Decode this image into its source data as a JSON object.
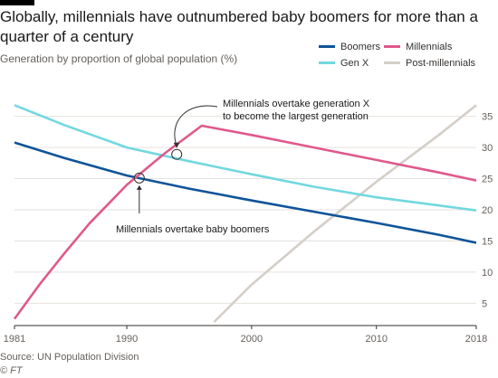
{
  "title": "Globally, millennials have outnumbered baby boomers for more than a quarter of a century",
  "subtitle": "Generation by proportion of global population (%)",
  "source": "Source: UN Population Division",
  "credit": "© FT",
  "colors": {
    "boomers": "#0f5499",
    "millennials": "#e0598b",
    "genx": "#72d8df",
    "post_millennials": "#d4cec8"
  },
  "legend": [
    {
      "name": "Boomers",
      "color": "#0f5499"
    },
    {
      "name": "Millennials",
      "color": "#e0598b"
    },
    {
      "name": "Gen X",
      "color": "#72d8df"
    },
    {
      "name": "Post-millennials",
      "color": "#d4cec8"
    }
  ],
  "annotations": {
    "genx_overtake": "Millennials overtake generation X\nto become the largest generation",
    "boomer_overtake": "Millennials overtake baby boomers"
  },
  "chart_data": {
    "type": "line",
    "title": "Globally, millennials have outnumbered baby boomers for more than a quarter of a century",
    "subtitle": "Generation by proportion of global population (%)",
    "xlim": [
      1981,
      2018
    ],
    "ylim": [
      2,
      38
    ],
    "x_ticks": [
      1981,
      1990,
      2000,
      2010,
      2018
    ],
    "y_ticks": [
      5,
      10,
      15,
      20,
      25,
      30,
      35
    ],
    "y_axis_position": "right",
    "grid": "horizontal",
    "legend_position": "top-right",
    "series": [
      {
        "name": "Boomers",
        "x": [
          1981,
          1985,
          1990,
          1995,
          2000,
          2005,
          2010,
          2015,
          2018
        ],
        "y": [
          30.8,
          28.3,
          25.5,
          23.4,
          21.5,
          19.7,
          17.9,
          16.0,
          14.7
        ]
      },
      {
        "name": "Gen X",
        "x": [
          1981,
          1985,
          1990,
          1995,
          2000,
          2005,
          2010,
          2015,
          2018
        ],
        "y": [
          36.8,
          33.6,
          30.0,
          27.8,
          25.7,
          23.7,
          22.0,
          20.7,
          19.9
        ]
      },
      {
        "name": "Millennials",
        "x": [
          1981,
          1983,
          1985,
          1987,
          1990,
          1993,
          1996,
          2000,
          2005,
          2010,
          2015,
          2018
        ],
        "y": [
          2.5,
          8.0,
          13.0,
          17.8,
          24.0,
          29.0,
          33.5,
          32.0,
          30.0,
          28.0,
          26.0,
          24.7
        ]
      },
      {
        "name": "Post-millennials",
        "x": [
          1997,
          2000,
          2005,
          2010,
          2015,
          2018
        ],
        "y": [
          2.0,
          8.0,
          16.5,
          24.5,
          32.0,
          36.8
        ]
      }
    ],
    "markers": [
      {
        "label": "Millennials overtake baby boomers",
        "x": 1991,
        "y": 25.1
      },
      {
        "label": "Millennials overtake generation X to become the largest generation",
        "x": 1994,
        "y": 28.9
      }
    ]
  }
}
